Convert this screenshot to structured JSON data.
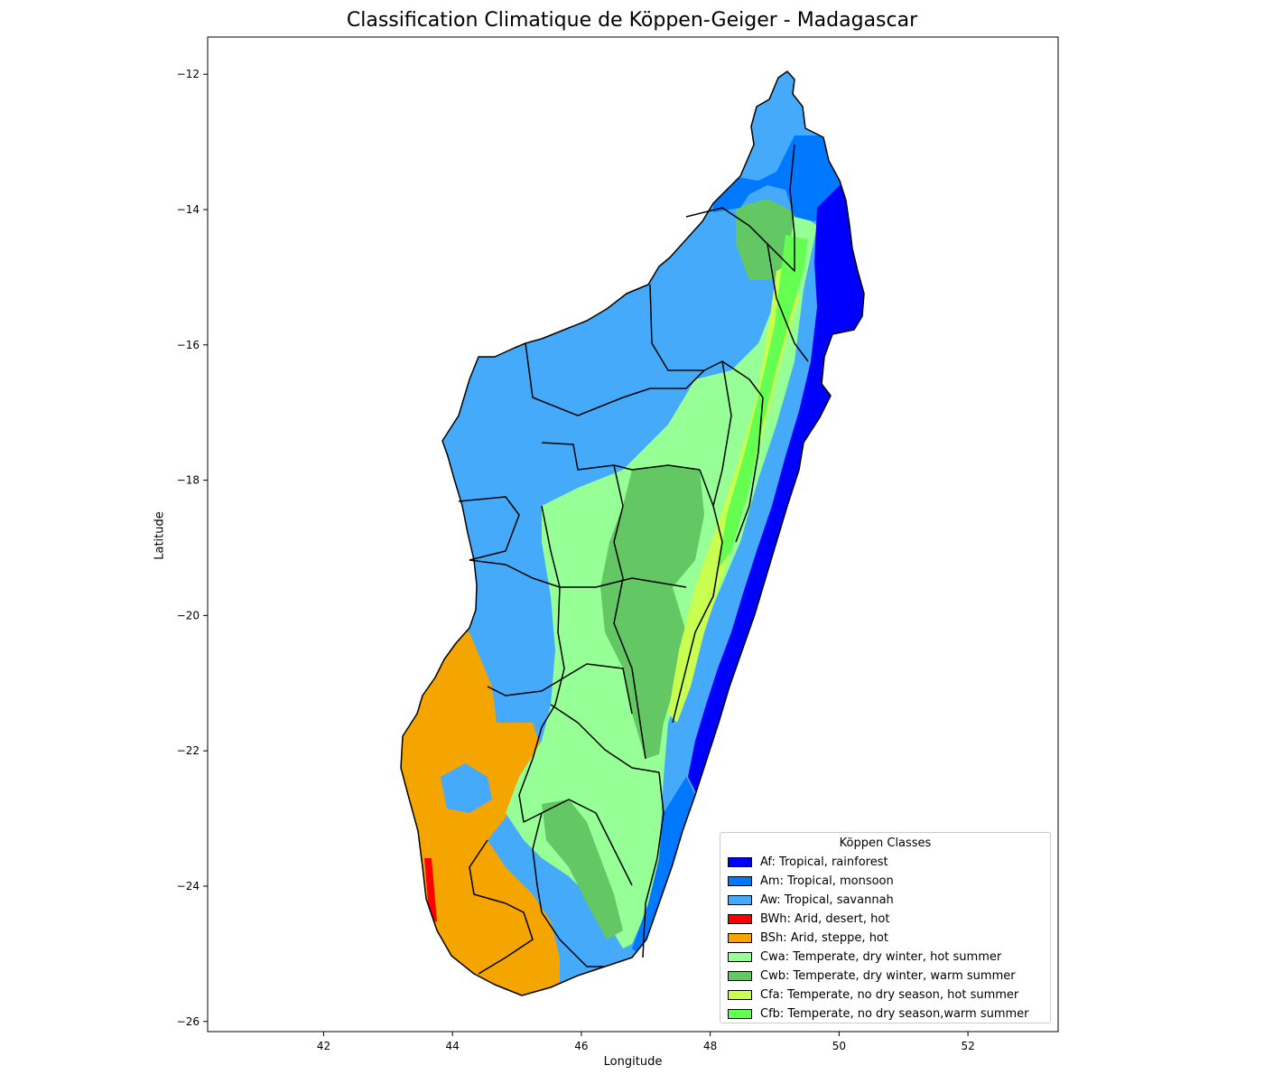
{
  "title": "Classification Climatique de Köppen-Geiger - Madagascar",
  "axes": {
    "xlabel": "Longitude",
    "ylabel": "Latitude",
    "xlim": [
      40.2,
      53.4
    ],
    "ylim": [
      -26.15,
      -11.45
    ],
    "xticks": [
      42,
      44,
      46,
      48,
      50,
      52
    ],
    "yticks": [
      -12,
      -14,
      -16,
      -18,
      -20,
      -22,
      -24,
      -26
    ]
  },
  "legend": {
    "title": "Köppen Classes",
    "items": [
      {
        "code": "Af",
        "label": "Af: Tropical, rainforest",
        "color": "#0000ff"
      },
      {
        "code": "Am",
        "label": "Am: Tropical, monsoon",
        "color": "#0078ff"
      },
      {
        "code": "Aw",
        "label": "Aw: Tropical, savannah",
        "color": "#46aafa"
      },
      {
        "code": "BWh",
        "label": "BWh: Arid, desert, hot",
        "color": "#ff0000"
      },
      {
        "code": "BSh",
        "label": "BSh: Arid, steppe, hot",
        "color": "#f5a500"
      },
      {
        "code": "Cwa",
        "label": "Cwa: Temperate, dry winter, hot summer",
        "color": "#96ff96"
      },
      {
        "code": "Cwb",
        "label": "Cwb: Temperate, dry winter, warm summer",
        "color": "#63c764"
      },
      {
        "code": "Cfa",
        "label": "Cfa: Temperate, no dry season, hot summer",
        "color": "#c8ff50"
      },
      {
        "code": "Cfb",
        "label": "Cfb: Temperate, no dry season,warm summer",
        "color": "#64ff50"
      }
    ]
  },
  "map": {
    "region": "Madagascar",
    "colors": {
      "background": "#ffffff",
      "frame": "#000000",
      "boundary": "#000000"
    }
  }
}
